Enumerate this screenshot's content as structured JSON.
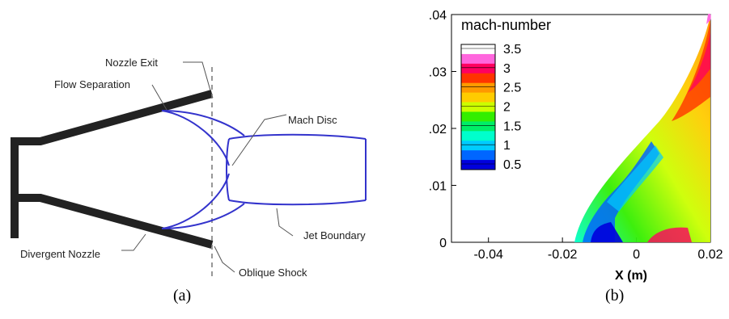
{
  "diagram": {
    "labels": {
      "nozzle_exit": "Nozzle Exit",
      "flow_separation": "Flow Separation",
      "mach_disc": "Mach Disc",
      "jet_boundary": "Jet Boundary",
      "divergent_nozzle": "Divergent Nozzle",
      "oblique_shock": "Oblique Shock"
    },
    "caption": "(a)",
    "colors": {
      "nozzle_wall": "#222222",
      "shock_lines": "#3333cc",
      "leader_lines": "#555555"
    }
  },
  "chart_data": {
    "type": "heatmap",
    "title": "",
    "xlabel": "X (m)",
    "ylabel": "",
    "xlim": [
      -0.05,
      0.02
    ],
    "ylim": [
      0,
      0.04
    ],
    "x_ticks": [
      -0.04,
      -0.02,
      0,
      0.02
    ],
    "x_tick_labels": [
      "-0.04",
      "-0.02",
      "0",
      "0.02"
    ],
    "y_ticks": [
      0,
      0.01,
      0.02,
      0.03,
      0.04
    ],
    "y_tick_labels": [
      "0",
      ".01",
      ".02",
      ".03",
      ".04"
    ],
    "colorbar": {
      "title": "mach-number",
      "levels": [
        3.5,
        3,
        2.5,
        2,
        1.5,
        1,
        0.5
      ],
      "level_labels": [
        "3.5",
        "3",
        "2.5",
        "2",
        "1.5",
        "1",
        "0.5"
      ],
      "colors": [
        "#ffffff",
        "#ff66dd",
        "#ff0060",
        "#ff3300",
        "#ff9900",
        "#ffcc00",
        "#ccff00",
        "#33ee00",
        "#00ee66",
        "#00ffcc",
        "#00ccff",
        "#0066ff",
        "#0000dd"
      ]
    },
    "caption": "(b)"
  }
}
